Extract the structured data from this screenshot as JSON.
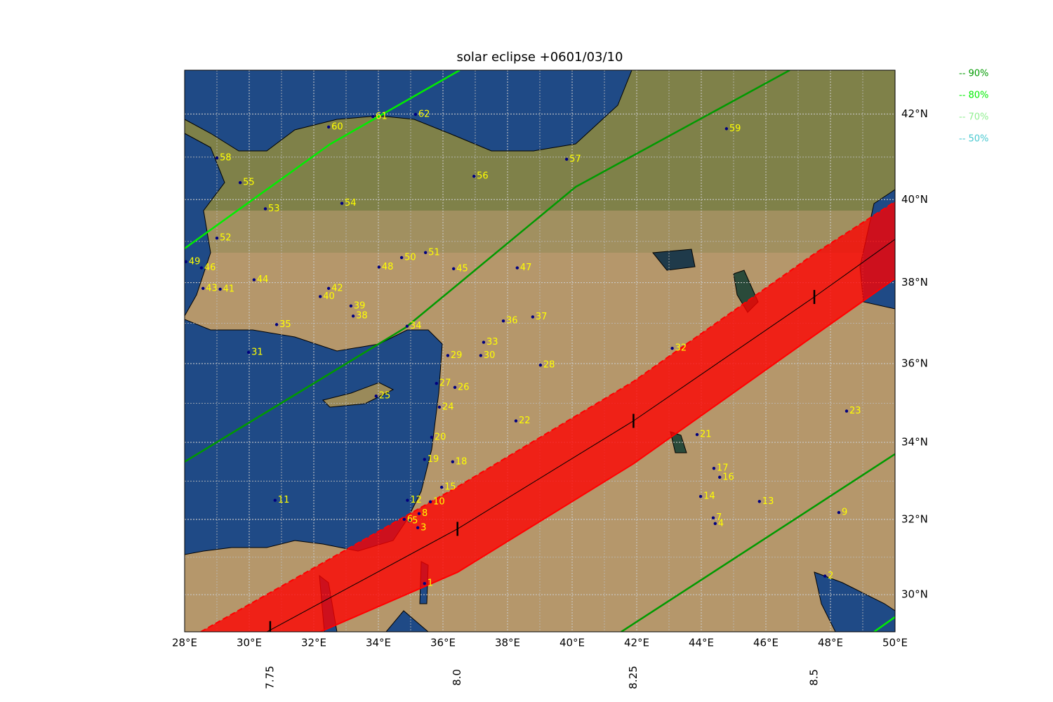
{
  "chart_data": {
    "type": "map",
    "title": "solar eclipse +0601/03/10",
    "projection": "mercator",
    "xlim": [
      28,
      50
    ],
    "ylim": [
      29,
      43
    ],
    "xticks": [
      {
        "value": 28,
        "label": "28°E"
      },
      {
        "value": 30,
        "label": "30°E"
      },
      {
        "value": 32,
        "label": "32°E"
      },
      {
        "value": 34,
        "label": "34°E"
      },
      {
        "value": 36,
        "label": "36°E"
      },
      {
        "value": 38,
        "label": "38°E"
      },
      {
        "value": 40,
        "label": "40°E"
      },
      {
        "value": 42,
        "label": "42°E"
      },
      {
        "value": 44,
        "label": "44°E"
      },
      {
        "value": 46,
        "label": "46°E"
      },
      {
        "value": 48,
        "label": "48°E"
      },
      {
        "value": 50,
        "label": "50°E"
      }
    ],
    "yticks": [
      {
        "value": 30,
        "label": "30°N"
      },
      {
        "value": 32,
        "label": "32°N"
      },
      {
        "value": 34,
        "label": "34°N"
      },
      {
        "value": 36,
        "label": "36°N"
      },
      {
        "value": 38,
        "label": "38°N"
      },
      {
        "value": 40,
        "label": "40°N"
      },
      {
        "value": 42,
        "label": "42°N"
      }
    ],
    "minor_grid": true,
    "contours": [
      {
        "name": "-- 90%",
        "color": "#009a00",
        "lon": [
          28,
          34.85,
          40.11,
          46.74,
          null,
          41.52,
          46.96,
          50
        ],
        "lat": [
          33.5,
          36.9,
          40.3,
          43,
          null,
          29,
          32.04,
          33.7
        ]
      },
      {
        "name": "-- 80%",
        "color": "#00ee00",
        "lon": [
          28,
          32.5,
          36.52,
          null,
          49.35,
          50
        ],
        "lat": [
          38.83,
          41.3,
          43,
          null,
          29,
          29.4
        ]
      },
      {
        "name": "-- 70%",
        "color": "#90ee90"
      },
      {
        "name": "-- 50%",
        "color": "#48c8d0"
      }
    ],
    "band": {
      "color": "#ff0000",
      "north_limit": {
        "lon": [
          28.5,
          36.45,
          41.9,
          47.5,
          50
        ],
        "lat": [
          29,
          32.85,
          35.55,
          38.7,
          39.95
        ]
      },
      "south_limit": {
        "lon": [
          32.2,
          36.45,
          41.9,
          47.5,
          50
        ],
        "lat": [
          29,
          30.6,
          33.45,
          36.7,
          38.1
        ]
      },
      "central_line": {
        "lon": [
          30.55,
          36.45,
          41.9,
          47.5,
          50
        ],
        "lat": [
          29,
          31.75,
          34.55,
          37.65,
          39.05
        ]
      }
    },
    "time_ticks": [
      {
        "value": 7.75,
        "lon": 30.65,
        "lat": 29.1
      },
      {
        "value": 8,
        "label": "8.0",
        "lon": 36.45,
        "lat": 31.75
      },
      {
        "value": 8.25,
        "lon": 41.9,
        "lat": 34.55
      },
      {
        "value": 8.5,
        "lon": 47.5,
        "lat": 37.65
      }
    ],
    "places": [
      {
        "label": "1",
        "lon": 35.43,
        "lat": 30.3
      },
      {
        "label": "2",
        "lon": 47.83,
        "lat": 30.5
      },
      {
        "label": "3",
        "lon": 35.22,
        "lat": 31.78
      },
      {
        "label": "4",
        "lon": 44.43,
        "lat": 31.89
      },
      {
        "label": "5",
        "lon": 34.96,
        "lat": 31.96
      },
      {
        "label": "6",
        "lon": 34.8,
        "lat": 32.0
      },
      {
        "label": "7",
        "lon": 44.37,
        "lat": 32.04
      },
      {
        "label": "8",
        "lon": 35.26,
        "lat": 32.15
      },
      {
        "label": "9",
        "lon": 48.26,
        "lat": 32.18
      },
      {
        "label": "10",
        "lon": 35.61,
        "lat": 32.46
      },
      {
        "label": "11",
        "lon": 30.8,
        "lat": 32.5
      },
      {
        "label": "12",
        "lon": 34.9,
        "lat": 32.5
      },
      {
        "label": "13",
        "lon": 45.8,
        "lat": 32.47
      },
      {
        "label": "14",
        "lon": 43.98,
        "lat": 32.6
      },
      {
        "label": "15",
        "lon": 35.96,
        "lat": 32.84
      },
      {
        "label": "16",
        "lon": 44.57,
        "lat": 33.1
      },
      {
        "label": "17",
        "lon": 44.39,
        "lat": 33.33
      },
      {
        "label": "18",
        "lon": 36.3,
        "lat": 33.5
      },
      {
        "label": "19",
        "lon": 35.43,
        "lat": 33.56
      },
      {
        "label": "20",
        "lon": 35.65,
        "lat": 34.13
      },
      {
        "label": "21",
        "lon": 43.87,
        "lat": 34.2
      },
      {
        "label": "22",
        "lon": 38.26,
        "lat": 34.55
      },
      {
        "label": "23",
        "lon": 48.5,
        "lat": 34.8
      },
      {
        "label": "24",
        "lon": 35.89,
        "lat": 34.9
      },
      {
        "label": "25",
        "lon": 33.93,
        "lat": 35.18
      },
      {
        "label": "26",
        "lon": 36.37,
        "lat": 35.4
      },
      {
        "label": "27",
        "lon": 35.8,
        "lat": 35.5
      },
      {
        "label": "28",
        "lon": 39.02,
        "lat": 35.96
      },
      {
        "label": "29",
        "lon": 36.15,
        "lat": 36.2
      },
      {
        "label": "30",
        "lon": 37.17,
        "lat": 36.2
      },
      {
        "label": "31",
        "lon": 29.98,
        "lat": 36.28
      },
      {
        "label": "32",
        "lon": 43.1,
        "lat": 36.38
      },
      {
        "label": "33",
        "lon": 37.26,
        "lat": 36.53
      },
      {
        "label": "34",
        "lon": 34.89,
        "lat": 36.93
      },
      {
        "label": "35",
        "lon": 30.85,
        "lat": 36.97
      },
      {
        "label": "36",
        "lon": 37.87,
        "lat": 37.06
      },
      {
        "label": "37",
        "lon": 38.78,
        "lat": 37.16
      },
      {
        "label": "38",
        "lon": 33.22,
        "lat": 37.18
      },
      {
        "label": "39",
        "lon": 33.15,
        "lat": 37.43
      },
      {
        "label": "40",
        "lon": 32.2,
        "lat": 37.66
      },
      {
        "label": "41",
        "lon": 29.1,
        "lat": 37.84
      },
      {
        "label": "42",
        "lon": 32.46,
        "lat": 37.86
      },
      {
        "label": "43",
        "lon": 28.57,
        "lat": 37.86
      },
      {
        "label": "44",
        "lon": 30.15,
        "lat": 38.07
      },
      {
        "label": "45",
        "lon": 36.33,
        "lat": 38.34
      },
      {
        "label": "46",
        "lon": 28.52,
        "lat": 38.36
      },
      {
        "label": "47",
        "lon": 38.3,
        "lat": 38.36
      },
      {
        "label": "48",
        "lon": 34.02,
        "lat": 38.38
      },
      {
        "label": "49",
        "lon": 28.04,
        "lat": 38.51
      },
      {
        "label": "50",
        "lon": 34.72,
        "lat": 38.61
      },
      {
        "label": "51",
        "lon": 35.46,
        "lat": 38.73
      },
      {
        "label": "52",
        "lon": 29.0,
        "lat": 39.08
      },
      {
        "label": "53",
        "lon": 30.5,
        "lat": 39.78
      },
      {
        "label": "54",
        "lon": 32.87,
        "lat": 39.91
      },
      {
        "label": "55",
        "lon": 29.72,
        "lat": 40.4
      },
      {
        "label": "56",
        "lon": 36.96,
        "lat": 40.55
      },
      {
        "label": "57",
        "lon": 39.83,
        "lat": 40.95
      },
      {
        "label": "58",
        "lon": 29.0,
        "lat": 40.98
      },
      {
        "label": "59",
        "lon": 44.78,
        "lat": 41.66
      },
      {
        "label": "60",
        "lon": 32.46,
        "lat": 41.7
      },
      {
        "label": "61",
        "lon": 33.83,
        "lat": 41.94
      },
      {
        "label": "62",
        "lon": 35.15,
        "lat": 41.99
      }
    ]
  }
}
